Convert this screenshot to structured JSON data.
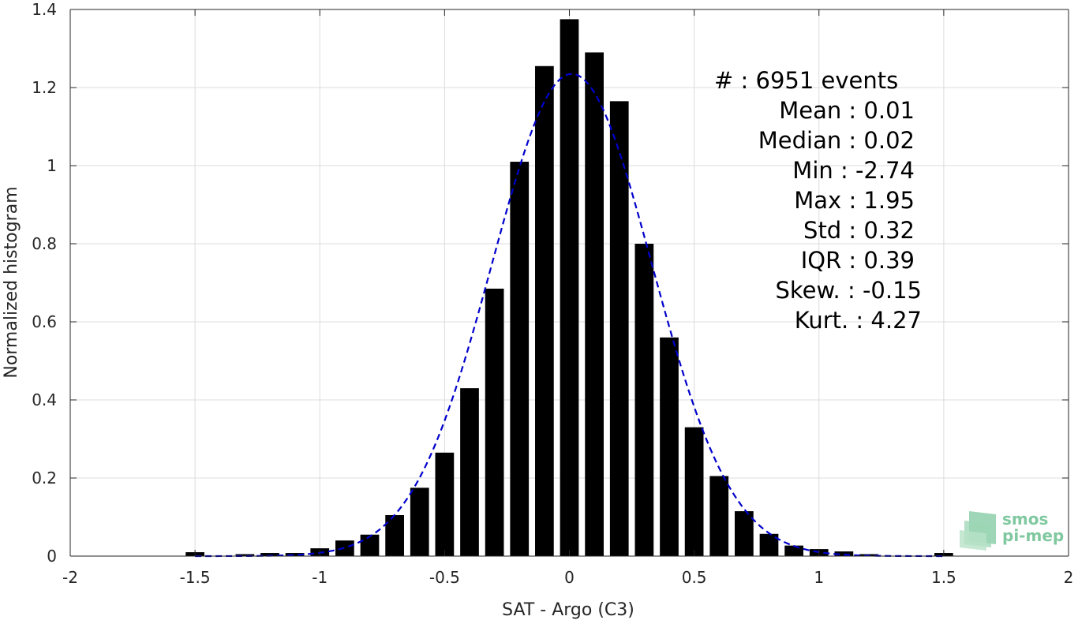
{
  "chart_data": {
    "type": "bar",
    "xlabel": "SAT - Argo (C3)",
    "ylabel": "Normalized histogram",
    "xlim": [
      -2,
      2
    ],
    "ylim": [
      0,
      1.4
    ],
    "bar_width": 0.075,
    "x_ticks": [
      -2,
      -1.5,
      -1,
      -0.5,
      0,
      0.5,
      1,
      1.5,
      2
    ],
    "x_tick_labels": [
      "-2",
      "-1.5",
      "-1",
      "-0.5",
      "0",
      "0.5",
      "1",
      "1.5",
      "2"
    ],
    "y_ticks": [
      0,
      0.2,
      0.4,
      0.6,
      0.8,
      1,
      1.2,
      1.4
    ],
    "y_tick_labels": [
      "0",
      "0.2",
      "0.4",
      "0.6",
      "0.8",
      "1",
      "1.2",
      "1.4"
    ],
    "grid": true,
    "bar_color": "#000000",
    "fit_color": "#0000cc",
    "bars": [
      {
        "x": -1.5,
        "y": 0.01
      },
      {
        "x": -1.3,
        "y": 0.005
      },
      {
        "x": -1.2,
        "y": 0.008
      },
      {
        "x": -1.1,
        "y": 0.008
      },
      {
        "x": -1.0,
        "y": 0.02
      },
      {
        "x": -0.9,
        "y": 0.04
      },
      {
        "x": -0.8,
        "y": 0.055
      },
      {
        "x": -0.7,
        "y": 0.105
      },
      {
        "x": -0.6,
        "y": 0.175
      },
      {
        "x": -0.5,
        "y": 0.265
      },
      {
        "x": -0.4,
        "y": 0.43
      },
      {
        "x": -0.3,
        "y": 0.685
      },
      {
        "x": -0.2,
        "y": 1.01
      },
      {
        "x": -0.1,
        "y": 1.255
      },
      {
        "x": 0.0,
        "y": 1.375
      },
      {
        "x": 0.1,
        "y": 1.29
      },
      {
        "x": 0.2,
        "y": 1.165
      },
      {
        "x": 0.3,
        "y": 0.8
      },
      {
        "x": 0.4,
        "y": 0.56
      },
      {
        "x": 0.5,
        "y": 0.33
      },
      {
        "x": 0.6,
        "y": 0.205
      },
      {
        "x": 0.7,
        "y": 0.115
      },
      {
        "x": 0.8,
        "y": 0.057
      },
      {
        "x": 0.9,
        "y": 0.027
      },
      {
        "x": 1.0,
        "y": 0.018
      },
      {
        "x": 1.1,
        "y": 0.012
      },
      {
        "x": 1.2,
        "y": 0.005
      },
      {
        "x": 1.5,
        "y": 0.008
      }
    ],
    "fit_curve": {
      "type": "dashed-line",
      "mean": 0.01,
      "std": 0.32,
      "peak": 1.235
    }
  },
  "stats": {
    "lines": [
      "#  : 6951 events",
      "Mean : 0.01",
      "Median : 0.02",
      "Min : -2.74",
      "Max : 1.95",
      "Std : 0.32",
      "IQR : 0.39",
      "Skew. : -0.15",
      "Kurt. : 4.27"
    ]
  },
  "logo": {
    "line1": "smos",
    "line2": "pi-mep",
    "color": "#7fc8a0"
  }
}
